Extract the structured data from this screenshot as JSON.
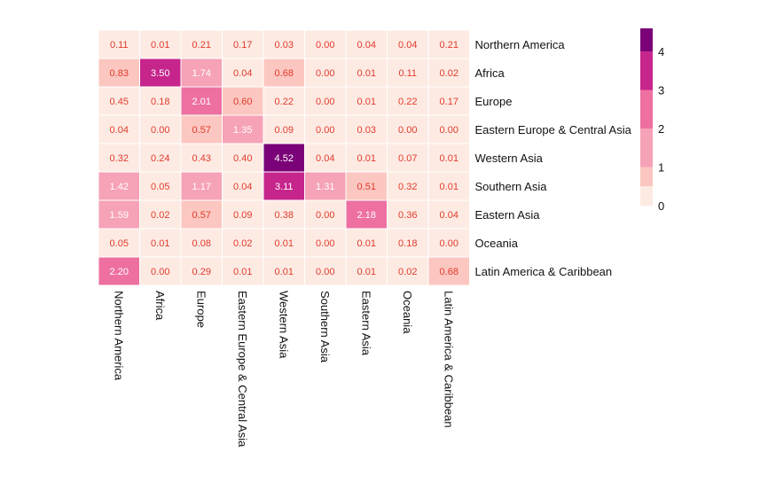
{
  "chart_data": {
    "type": "heatmap",
    "title": "",
    "xlabel": "",
    "ylabel": "",
    "columns": [
      "Northern America",
      "Africa",
      "Europe",
      "Eastern Europe & Central Asia",
      "Western Asia",
      "Southern Asia",
      "Eastern Asia",
      "Oceania",
      "Latin America & Caribbean"
    ],
    "rows": [
      "Northern America",
      "Africa",
      "Europe",
      "Eastern Europe & Central Asia",
      "Western Asia",
      "Southern Asia",
      "Eastern Asia",
      "Oceania",
      "Latin America & Caribbean"
    ],
    "values": [
      [
        0.11,
        0.01,
        0.21,
        0.17,
        0.03,
        0.0,
        0.04,
        0.04,
        0.21
      ],
      [
        0.83,
        3.5,
        1.74,
        0.04,
        0.68,
        0.0,
        0.01,
        0.11,
        0.02
      ],
      [
        0.45,
        0.18,
        2.01,
        0.6,
        0.22,
        0.0,
        0.01,
        0.22,
        0.17
      ],
      [
        0.04,
        0.0,
        0.57,
        1.35,
        0.09,
        0.0,
        0.03,
        0.0,
        0.0
      ],
      [
        0.32,
        0.24,
        0.43,
        0.4,
        4.52,
        0.04,
        0.01,
        0.07,
        0.01
      ],
      [
        1.42,
        0.05,
        1.17,
        0.04,
        3.11,
        1.31,
        0.51,
        0.32,
        0.01
      ],
      [
        1.59,
        0.02,
        0.57,
        0.09,
        0.38,
        0.0,
        2.18,
        0.36,
        0.04
      ],
      [
        0.05,
        0.01,
        0.08,
        0.02,
        0.01,
        0.0,
        0.01,
        0.18,
        0.0
      ],
      [
        2.2,
        0.0,
        0.29,
        0.01,
        0.01,
        0.0,
        0.01,
        0.02,
        0.68
      ]
    ],
    "value_format_decimals": 2,
    "colorbar": {
      "ticks": [
        "4",
        "3",
        "2",
        "1",
        "0"
      ],
      "tick_values": [
        4,
        3,
        2,
        1,
        0
      ],
      "range": [
        0,
        4.6
      ]
    },
    "color_bins": {
      "thresholds": [
        0.5,
        1.0,
        2.0,
        3.0,
        4.0
      ],
      "colors": [
        "#fdebe3",
        "#fbc7c0",
        "#f6a2b7",
        "#ed70a0",
        "#c6258c",
        "#7a0177"
      ]
    },
    "label_colors": {
      "light_cell": "#e23a2d",
      "dark_cell": "#ffffff"
    },
    "grid": false,
    "legend_position": "right"
  }
}
